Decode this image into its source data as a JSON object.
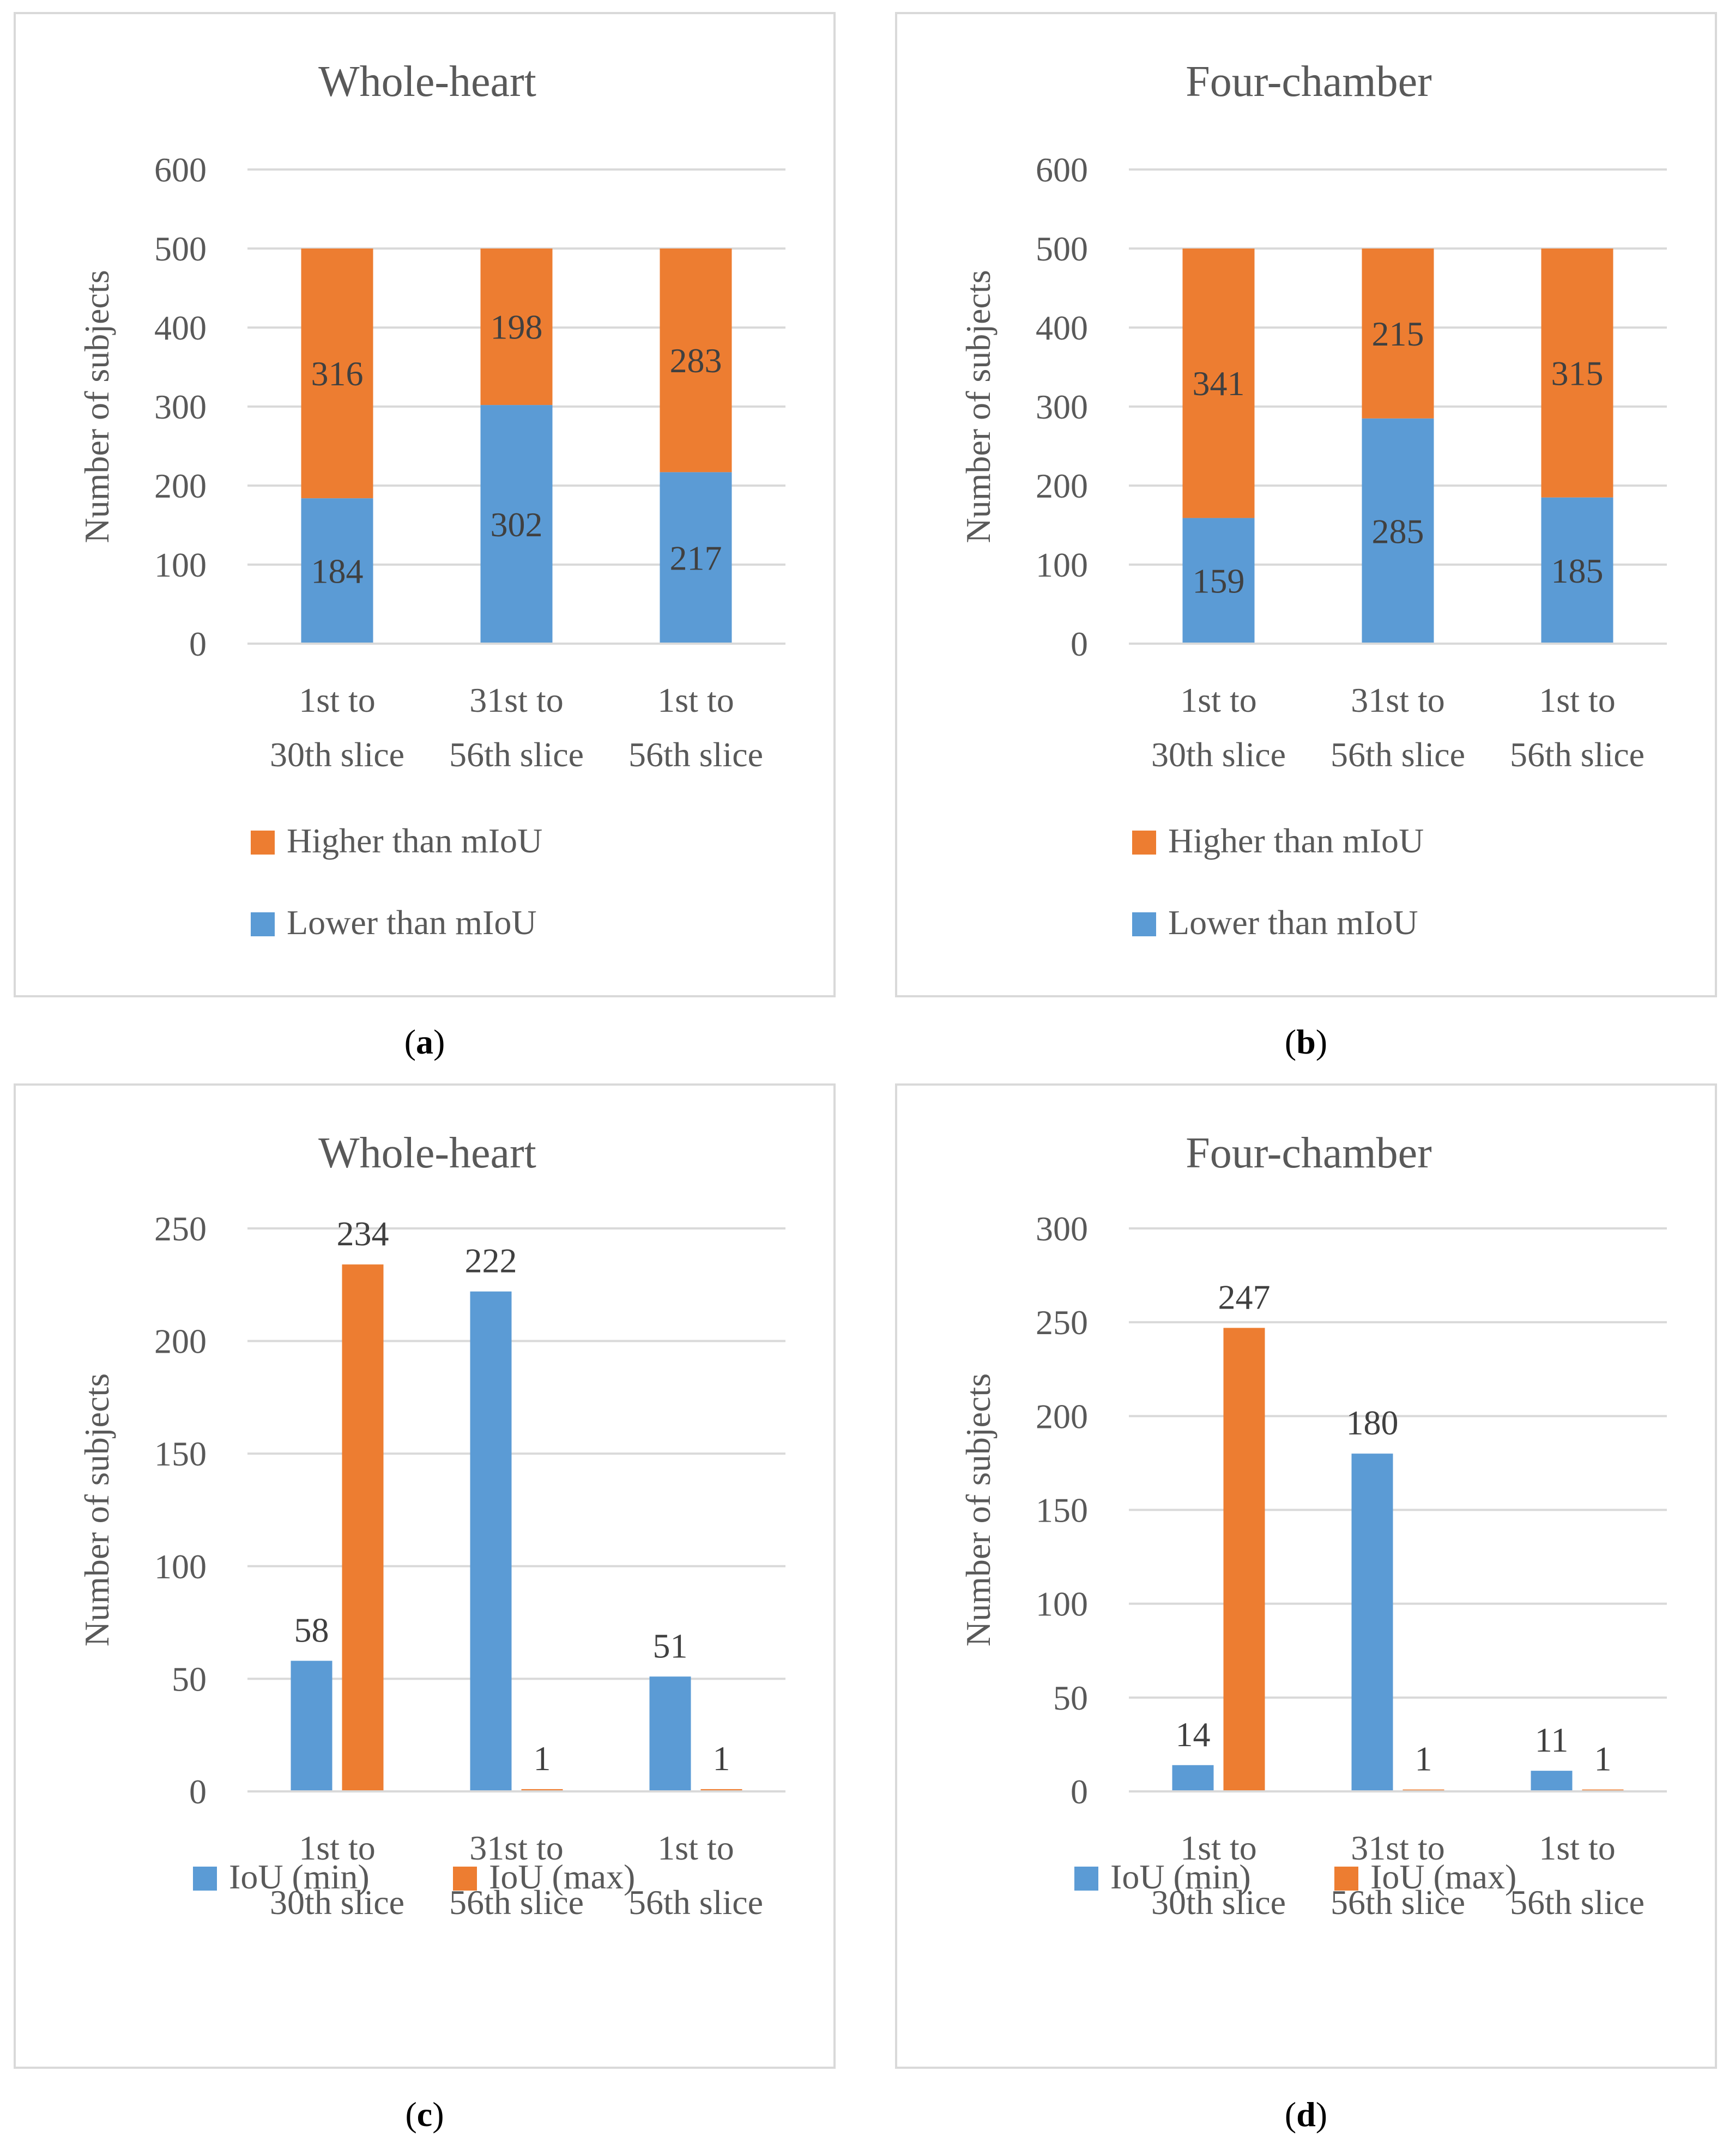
{
  "chart_data": [
    {
      "type": "bar",
      "stacked": true,
      "title": "Whole-heart",
      "ylabel": "Number of subjects",
      "ylim": [
        0,
        600
      ],
      "yticks": [
        0,
        100,
        200,
        300,
        400,
        500,
        600
      ],
      "categories": [
        "1st to 30th slice",
        "31st to 56th slice",
        "1st to 56th slice"
      ],
      "category_lines": [
        [
          "1st to",
          "30th slice"
        ],
        [
          "31st to",
          "56th slice"
        ],
        [
          "1st to",
          "56th slice"
        ]
      ],
      "series": [
        {
          "name": "Lower  than mIoU",
          "values": [
            184,
            302,
            217
          ],
          "color": "#5b9bd5"
        },
        {
          "name": "Higher than mIoU",
          "values": [
            316,
            198,
            283
          ],
          "color": "#ed7d31"
        }
      ],
      "legend_order": [
        1,
        0
      ],
      "legend_layout": "vertical-bottom",
      "caption_letter": "a"
    },
    {
      "type": "bar",
      "stacked": true,
      "title": "Four-chamber",
      "ylabel": "Number of subjects",
      "ylim": [
        0,
        600
      ],
      "yticks": [
        0,
        100,
        200,
        300,
        400,
        500,
        600
      ],
      "categories": [
        "1st to 30th slice",
        "31st to 56th slice",
        "1st to 56th slice"
      ],
      "category_lines": [
        [
          "1st to",
          "30th slice"
        ],
        [
          "31st to",
          "56th slice"
        ],
        [
          "1st to",
          "56th slice"
        ]
      ],
      "series": [
        {
          "name": "Lower  than mIoU",
          "values": [
            159,
            285,
            185
          ],
          "color": "#5b9bd5"
        },
        {
          "name": "Higher than mIoU",
          "values": [
            341,
            215,
            315
          ],
          "color": "#ed7d31"
        }
      ],
      "legend_order": [
        1,
        0
      ],
      "legend_layout": "vertical-bottom",
      "caption_letter": "b"
    },
    {
      "type": "bar",
      "stacked": false,
      "title": "Whole-heart",
      "ylabel": "Number of subjects",
      "ylim": [
        0,
        250
      ],
      "yticks": [
        0,
        50,
        100,
        150,
        200,
        250
      ],
      "categories": [
        "1st to 30th slice",
        "31st to 56th slice",
        "1st to 56th slice"
      ],
      "category_lines": [
        [
          "1st to",
          "30th slice"
        ],
        [
          "31st to",
          "56th slice"
        ],
        [
          "1st to",
          "56th slice"
        ]
      ],
      "series": [
        {
          "name": "IoU (min)",
          "values": [
            58,
            222,
            51
          ],
          "color": "#5b9bd5"
        },
        {
          "name": "IoU (max)",
          "values": [
            234,
            1,
            1
          ],
          "color": "#ed7d31"
        }
      ],
      "legend_order": [
        0,
        1
      ],
      "legend_layout": "horizontal-bottom",
      "caption_letter": "c"
    },
    {
      "type": "bar",
      "stacked": false,
      "title": "Four-chamber",
      "ylabel": "Number of subjects",
      "ylim": [
        0,
        300
      ],
      "yticks": [
        0,
        50,
        100,
        150,
        200,
        250,
        300
      ],
      "categories": [
        "1st to 30th slice",
        "31st to 56th slice",
        "1st to 56th slice"
      ],
      "category_lines": [
        [
          "1st to",
          "30th slice"
        ],
        [
          "31st to",
          "56th slice"
        ],
        [
          "1st to",
          "56th slice"
        ]
      ],
      "series": [
        {
          "name": "IoU (min)",
          "values": [
            14,
            180,
            11
          ],
          "color": "#5b9bd5"
        },
        {
          "name": "IoU (max)",
          "values": [
            247,
            1,
            1
          ],
          "color": "#ed7d31"
        }
      ],
      "legend_order": [
        0,
        1
      ],
      "legend_layout": "horizontal-bottom",
      "caption_letter": "d"
    }
  ],
  "captions": {
    "a": {
      "open": "(",
      "letter": "a",
      "close": ")"
    },
    "b": {
      "open": "(",
      "letter": "b",
      "close": ")"
    },
    "c": {
      "open": "(",
      "letter": "c",
      "close": ")"
    },
    "d": {
      "open": "(",
      "letter": "d",
      "close": ")"
    }
  }
}
